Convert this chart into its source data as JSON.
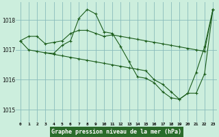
{
  "xlabel": "Graphe pression niveau de la mer (hPa)",
  "bg_color": "#cceedd",
  "line_color": "#1a5c1a",
  "grid_color": "#88bbbb",
  "yticks": [
    1015,
    1016,
    1017,
    1018
  ],
  "ylim": [
    1014.6,
    1018.6
  ],
  "xlim": [
    -0.5,
    23.5
  ],
  "xtick_labels": [
    "0",
    "1",
    "2",
    "3",
    "4",
    "5",
    "6",
    "7",
    "8",
    "9",
    "10",
    "11",
    "12",
    "13",
    "14",
    "15",
    "16",
    "17",
    "18",
    "19",
    "20",
    "21",
    "22",
    "23"
  ],
  "series1_x": [
    0,
    1,
    2,
    3,
    4,
    5,
    6,
    7,
    8,
    9,
    10,
    11,
    12,
    13,
    14,
    15,
    16,
    17,
    18,
    19,
    20,
    21,
    22,
    23
  ],
  "series1_y": [
    1017.3,
    1017.45,
    1017.45,
    1017.2,
    1017.25,
    1017.3,
    1017.55,
    1017.65,
    1017.65,
    1017.55,
    1017.45,
    1017.5,
    1017.45,
    1017.4,
    1017.35,
    1017.3,
    1017.25,
    1017.2,
    1017.15,
    1017.1,
    1017.05,
    1017.0,
    1016.95,
    1018.35
  ],
  "series2_x": [
    0,
    1,
    2,
    3,
    4,
    5,
    6,
    7,
    8,
    9,
    10,
    11,
    12,
    13,
    14,
    15,
    16,
    17,
    18,
    19,
    20,
    21,
    22,
    23
  ],
  "series2_y": [
    1017.3,
    1017.0,
    1016.95,
    1016.9,
    1016.88,
    1017.15,
    1017.3,
    1018.05,
    1018.35,
    1018.2,
    1017.6,
    1017.55,
    1017.1,
    1016.6,
    1016.1,
    1016.05,
    1015.9,
    1015.6,
    1015.4,
    1015.35,
    1015.55,
    1016.25,
    1017.1,
    1018.35
  ],
  "series3_x": [
    3,
    4,
    5,
    6,
    7,
    8,
    9,
    10,
    11,
    12,
    13,
    14,
    15,
    16,
    17,
    18,
    19,
    20,
    21,
    22,
    23
  ],
  "series3_y": [
    1016.9,
    1016.85,
    1016.8,
    1016.75,
    1016.7,
    1016.65,
    1016.6,
    1016.55,
    1016.5,
    1016.45,
    1016.4,
    1016.35,
    1016.3,
    1016.0,
    1015.85,
    1015.6,
    1015.35,
    1015.55,
    1015.55,
    1016.2,
    1018.35
  ]
}
